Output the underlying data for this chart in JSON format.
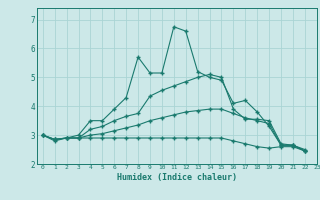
{
  "xlabel": "Humidex (Indice chaleur)",
  "background_color": "#cce8e8",
  "grid_color": "#aad4d4",
  "line_color": "#1a7a6e",
  "xlim": [
    -0.5,
    23
  ],
  "ylim": [
    2.0,
    7.4
  ],
  "yticks": [
    2,
    3,
    4,
    5,
    6,
    7
  ],
  "xticks": [
    0,
    1,
    2,
    3,
    4,
    5,
    6,
    7,
    8,
    9,
    10,
    11,
    12,
    13,
    14,
    15,
    16,
    17,
    18,
    19,
    20,
    21,
    22,
    23
  ],
  "series": [
    [
      3.0,
      2.8,
      2.9,
      3.0,
      3.5,
      3.5,
      3.9,
      4.3,
      5.7,
      5.15,
      5.15,
      6.75,
      6.6,
      5.2,
      5.0,
      4.9,
      4.1,
      4.2,
      3.8,
      3.3,
      2.65,
      2.65,
      2.45
    ],
    [
      3.0,
      2.85,
      2.9,
      2.9,
      3.2,
      3.3,
      3.5,
      3.65,
      3.75,
      4.35,
      4.55,
      4.7,
      4.85,
      5.0,
      5.1,
      5.0,
      3.9,
      3.55,
      3.55,
      3.5,
      2.7,
      2.65,
      2.5
    ],
    [
      3.0,
      2.85,
      2.9,
      2.9,
      3.0,
      3.05,
      3.15,
      3.25,
      3.35,
      3.5,
      3.6,
      3.7,
      3.8,
      3.85,
      3.9,
      3.9,
      3.75,
      3.6,
      3.5,
      3.4,
      2.65,
      2.65,
      2.45
    ],
    [
      3.0,
      2.85,
      2.9,
      2.9,
      2.9,
      2.9,
      2.9,
      2.9,
      2.9,
      2.9,
      2.9,
      2.9,
      2.9,
      2.9,
      2.9,
      2.9,
      2.8,
      2.7,
      2.6,
      2.55,
      2.6,
      2.6,
      2.45
    ]
  ]
}
